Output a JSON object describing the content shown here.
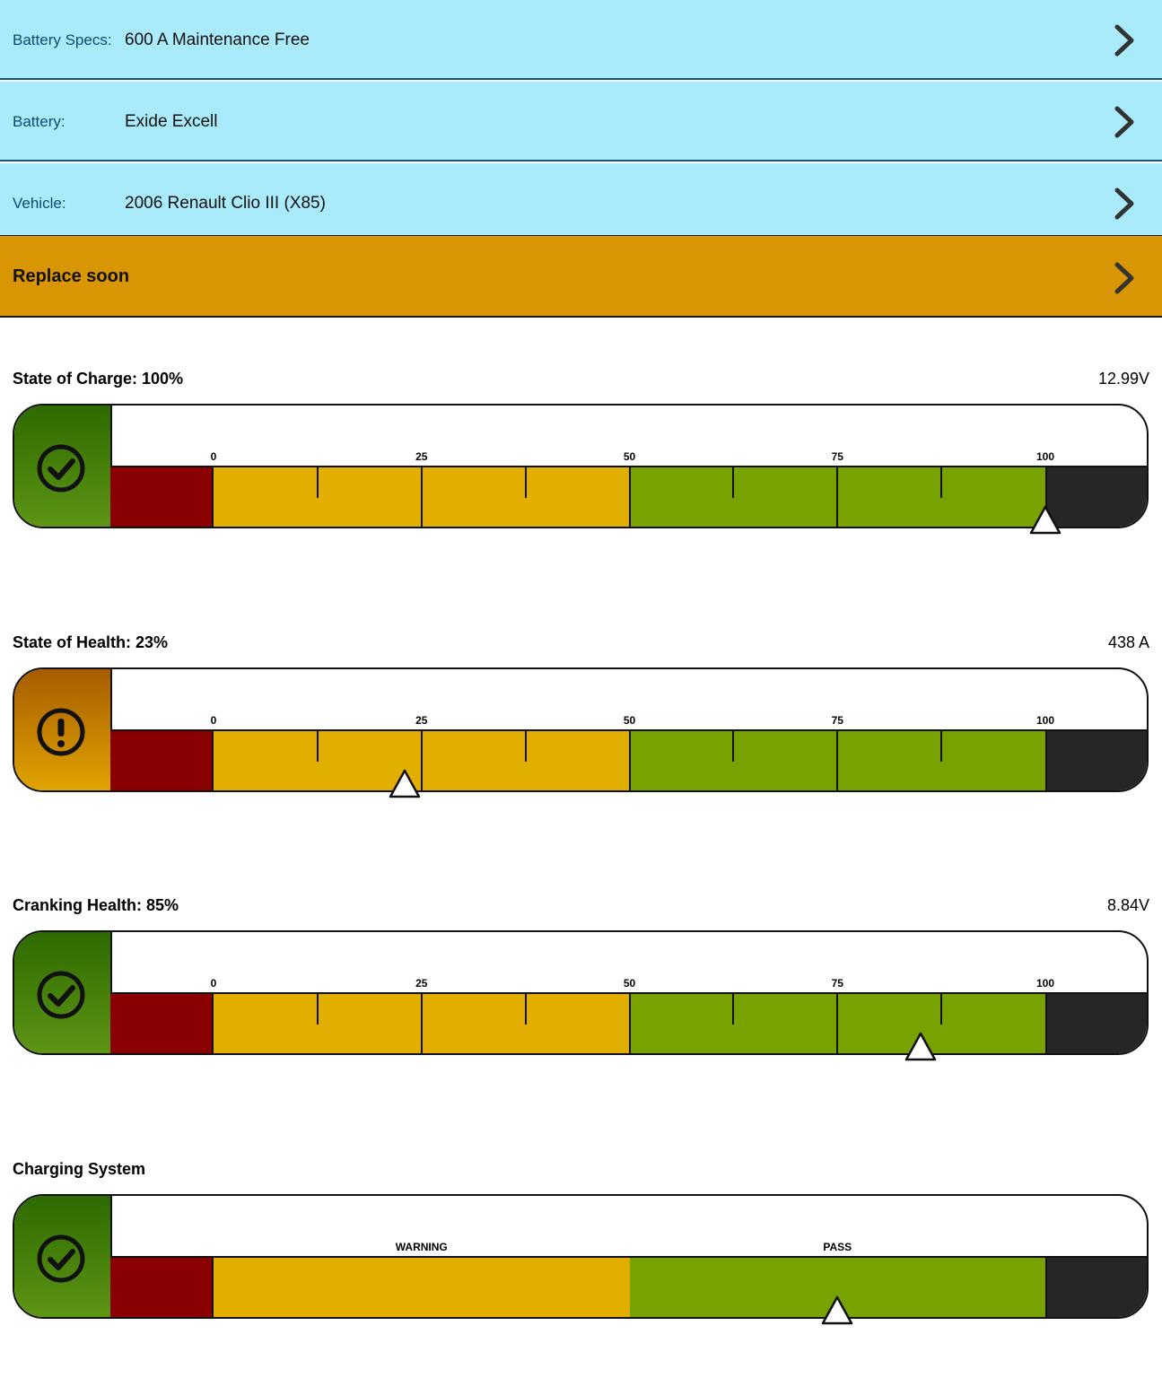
{
  "rows": [
    {
      "label": "Battery Specs:",
      "value": "600 A Maintenance Free"
    },
    {
      "label": "Battery:",
      "value": "Exide Excell"
    },
    {
      "label": "Vehicle:",
      "value": "2006 Renault Clio III (X85)"
    }
  ],
  "alert": {
    "text": "Replace soon",
    "color": "#d89604"
  },
  "gauges": [
    {
      "title": "State of Charge: 100%",
      "reading": "12.99V",
      "status_icon": "check-icon",
      "value_percent": 100,
      "scale_labels": [
        "0",
        "25",
        "50",
        "75",
        "100"
      ]
    },
    {
      "title": "State of Health: 23%",
      "reading": "438 A",
      "status_icon": "exclamation-icon",
      "value_percent": 23,
      "scale_labels": [
        "0",
        "25",
        "50",
        "75",
        "100"
      ]
    },
    {
      "title": "Cranking Health: 85%",
      "reading": "8.84V",
      "status_icon": "check-icon",
      "value_percent": 85,
      "scale_labels": [
        "0",
        "25",
        "50",
        "75",
        "100"
      ]
    },
    {
      "title": "Charging System",
      "reading": "",
      "status_icon": "check-icon",
      "value_percent": 75,
      "scale_labels": [
        "WARNING",
        "PASS"
      ]
    }
  ],
  "colors": {
    "red": "#8a0000",
    "yellow": "#e2ae00",
    "green": "#78a200",
    "dark": "#262626",
    "row_bg": "#aaebfb"
  }
}
